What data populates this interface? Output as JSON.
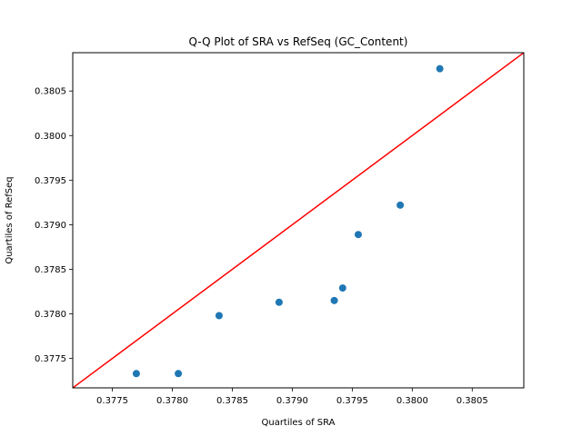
{
  "chart_data": {
    "type": "scatter",
    "title": "Q-Q Plot of SRA vs RefSeq (GC_Content)",
    "xlabel": "Quartiles of SRA",
    "ylabel": "Quartiles of RefSeq",
    "xlim": [
      0.37717,
      0.38093
    ],
    "ylim": [
      0.37717,
      0.38093
    ],
    "xticks": [
      0.3775,
      0.378,
      0.3785,
      0.379,
      0.3795,
      0.38,
      0.3805
    ],
    "yticks": [
      0.3775,
      0.378,
      0.3785,
      0.379,
      0.3795,
      0.38,
      0.3805
    ],
    "tick_labels": [
      "0.3775",
      "0.3780",
      "0.3785",
      "0.3790",
      "0.3795",
      "0.3800",
      "0.3805"
    ],
    "grid": false,
    "series": [
      {
        "color": "#1f77b4",
        "x": [
          0.3777,
          0.37805,
          0.37839,
          0.37889,
          0.37935,
          0.37942,
          0.37955,
          0.3799,
          0.38023
        ],
        "y": [
          0.37733,
          0.37733,
          0.37798,
          0.37813,
          0.37815,
          0.37829,
          0.37889,
          0.37922,
          0.38075
        ]
      }
    ],
    "reference_line": {
      "color": "#ff0000",
      "from": [
        0.37717,
        0.37717
      ],
      "to": [
        0.38093,
        0.38093
      ]
    }
  }
}
